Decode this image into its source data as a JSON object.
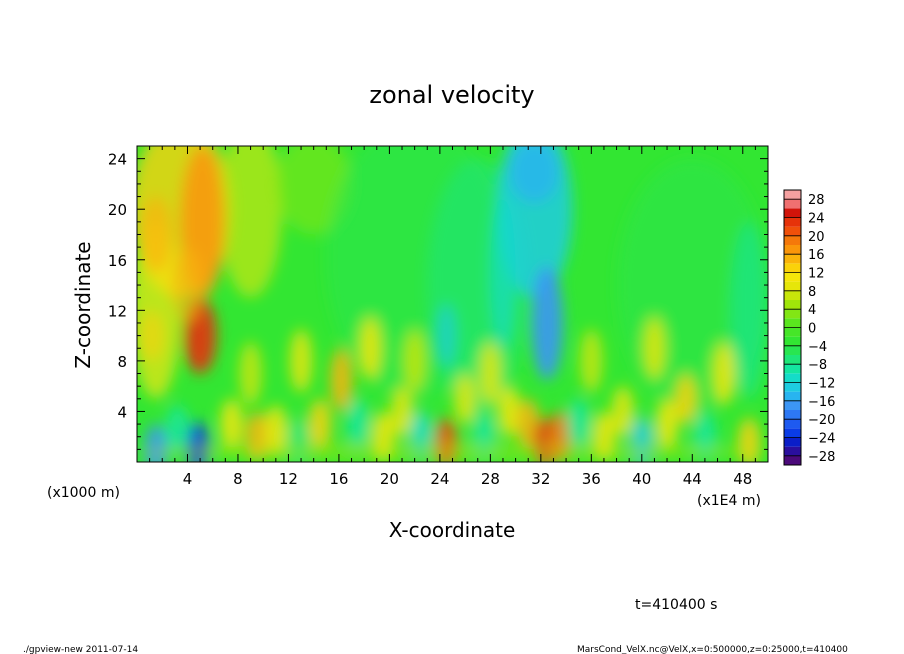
{
  "footer": {
    "program": "./gpview-new  2011-07-14",
    "source": "MarsCond_VelX.nc@VelX,x=0:500000,z=0:25000,t=410400"
  },
  "time_label": "t=410400 s",
  "chart_data": {
    "type": "heatmap",
    "title": "zonal velocity",
    "xlabel": "X-coordinate",
    "ylabel": "Z-coordinate",
    "x_unit_label": "(x1E4 m)",
    "y_unit_label": "(x1000 m)",
    "xlim": [
      0,
      50
    ],
    "ylim": [
      0,
      25
    ],
    "x_ticks": [
      4,
      8,
      12,
      16,
      20,
      24,
      28,
      32,
      36,
      40,
      44,
      48
    ],
    "y_ticks": [
      4,
      8,
      12,
      16,
      20,
      24
    ],
    "colorbar": {
      "levels": [
        -30,
        -28,
        -26,
        -24,
        -22,
        -20,
        -18,
        -16,
        -14,
        -12,
        -10,
        -8,
        -6,
        -4,
        -2,
        0,
        2,
        4,
        6,
        8,
        10,
        12,
        14,
        16,
        18,
        20,
        22,
        24,
        26,
        28,
        30
      ],
      "tick_labels": [
        28,
        24,
        20,
        16,
        12,
        8,
        4,
        0,
        -4,
        -8,
        -12,
        -16,
        -20,
        -24,
        -28
      ],
      "colors": [
        "#4b0a7a",
        "#2a0f9e",
        "#0a1ec8",
        "#0a3ce6",
        "#1e5af0",
        "#2d78f5",
        "#3c96f5",
        "#28b4f0",
        "#1ecce0",
        "#14dcc8",
        "#14e6a0",
        "#1ee678",
        "#28e650",
        "#32e632",
        "#46e628",
        "#5ae61e",
        "#82e614",
        "#a0e60a",
        "#c8e60a",
        "#e6e60a",
        "#f5e60a",
        "#fad20a",
        "#fab40a",
        "#fa960a",
        "#f5780a",
        "#f0500a",
        "#e6320a",
        "#d2140a",
        "#f07070",
        "#f5a0a0"
      ]
    }
  }
}
